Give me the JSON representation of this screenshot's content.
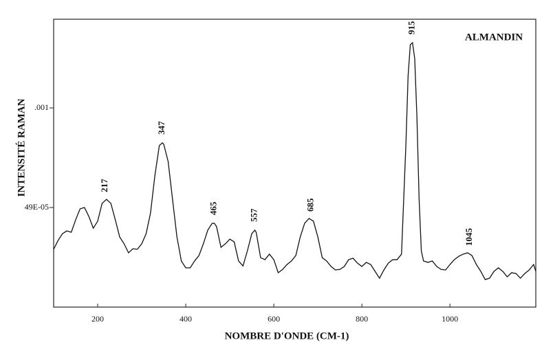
{
  "chart_data": {
    "type": "line",
    "title": "ALMANDIN",
    "x_label": "NOMBRE D'ONDE (CM-1)",
    "y_label": "INTENSITÉ RAMAN",
    "xlim": [
      100,
      1195
    ],
    "ylim": [
      -2e-05,
      0.001454
    ],
    "xticks": [
      200,
      400,
      600,
      800,
      1000
    ],
    "yticks": [
      {
        "value": 0.00049,
        "label": "49E-05"
      },
      {
        "value": 0.001,
        "label": ".001"
      }
    ],
    "color": "#111111",
    "peaks": [
      217,
      347,
      465,
      557,
      685,
      915,
      1045
    ],
    "x": [
      100,
      110,
      120,
      130,
      140,
      150,
      160,
      170,
      180,
      190,
      200,
      210,
      220,
      230,
      240,
      250,
      260,
      270,
      280,
      290,
      300,
      310,
      320,
      330,
      340,
      347,
      350,
      360,
      370,
      380,
      390,
      400,
      410,
      420,
      430,
      440,
      450,
      460,
      465,
      470,
      480,
      490,
      500,
      510,
      520,
      530,
      540,
      550,
      557,
      560,
      570,
      580,
      590,
      600,
      610,
      620,
      630,
      640,
      650,
      660,
      670,
      680,
      690,
      700,
      710,
      720,
      730,
      740,
      750,
      760,
      770,
      780,
      790,
      800,
      810,
      820,
      830,
      840,
      850,
      860,
      870,
      880,
      890,
      900,
      905,
      910,
      915,
      920,
      925,
      930,
      935,
      940,
      950,
      960,
      970,
      980,
      990,
      1000,
      1010,
      1020,
      1030,
      1040,
      1050,
      1060,
      1070,
      1080,
      1090,
      1100,
      1110,
      1120,
      1130,
      1140,
      1150,
      1160,
      1170,
      1180,
      1190,
      1195
    ],
    "values": [
      0.000276,
      0.000321,
      0.000356,
      0.00037,
      0.000363,
      0.000427,
      0.000483,
      0.00049,
      0.000444,
      0.000384,
      0.00042,
      0.000511,
      0.000532,
      0.000511,
      0.000427,
      0.000339,
      0.000304,
      0.000258,
      0.000279,
      0.000276,
      0.000304,
      0.000356,
      0.000462,
      0.000655,
      0.000807,
      0.000821,
      0.000814,
      0.000726,
      0.000532,
      0.000339,
      0.000216,
      0.000181,
      0.000181,
      0.000216,
      0.000244,
      0.000304,
      0.000374,
      0.000409,
      0.000409,
      0.000392,
      0.000286,
      0.000304,
      0.000328,
      0.000314,
      0.000216,
      0.000191,
      0.000268,
      0.000356,
      0.000374,
      0.000363,
      0.000233,
      0.000223,
      0.000251,
      0.000223,
      0.000156,
      0.000173,
      0.000198,
      0.000216,
      0.000244,
      0.000339,
      0.000409,
      0.000434,
      0.00042,
      0.000339,
      0.000233,
      0.000216,
      0.000188,
      0.00017,
      0.000173,
      0.000188,
      0.000223,
      0.00023,
      0.000205,
      0.000188,
      0.000209,
      0.000198,
      0.000163,
      0.000128,
      0.00017,
      0.000205,
      0.000223,
      0.000223,
      0.000251,
      0.000814,
      0.001165,
      0.001324,
      0.001334,
      0.001253,
      0.000954,
      0.000532,
      0.000268,
      0.000216,
      0.000209,
      0.000216,
      0.000188,
      0.000173,
      0.00017,
      0.000198,
      0.000223,
      0.00024,
      0.000251,
      0.000258,
      0.000244,
      0.000198,
      0.000163,
      0.000121,
      0.000128,
      0.000163,
      0.000181,
      0.000163,
      0.000135,
      0.000156,
      0.000152,
      0.000128,
      0.000152,
      0.00017,
      0.000198,
      0.000163
    ]
  }
}
